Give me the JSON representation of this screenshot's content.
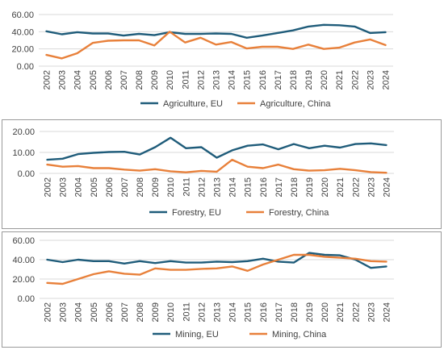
{
  "colors": {
    "eu": "#1F5C7A",
    "china": "#E8803A",
    "grid": "#d9d9d9",
    "text": "#404040"
  },
  "chart_data": [
    {
      "type": "line",
      "title": "",
      "xlabel": "",
      "ylabel": "",
      "ylim": [
        0,
        60
      ],
      "yticks": [
        "0.00",
        "20.00",
        "40.00",
        "60.00"
      ],
      "ytick_values": [
        0,
        20,
        40,
        60
      ],
      "grid": true,
      "legend_position": "bottom",
      "x": [
        "2002",
        "2003",
        "2004",
        "2005",
        "2006",
        "2007",
        "2008",
        "2009",
        "2010",
        "2011",
        "2012",
        "2013",
        "2014",
        "2015",
        "2016",
        "2017",
        "2018",
        "2019",
        "2020",
        "2021",
        "2022",
        "2023",
        "2024"
      ],
      "series": [
        {
          "name": "Agriculture, EU",
          "color": "#1F5C7A",
          "values": [
            40.5,
            37,
            39.5,
            38,
            38,
            35.5,
            37.5,
            36,
            39.5,
            37.5,
            37.5,
            38,
            37.5,
            33,
            35.5,
            38.5,
            41.5,
            46,
            48,
            47.5,
            46,
            38.5,
            39.5
          ]
        },
        {
          "name": "Agriculture, China",
          "color": "#E8803A",
          "values": [
            13,
            9,
            15,
            27,
            29.5,
            30,
            30,
            24,
            40,
            27.5,
            33,
            25,
            28,
            20.5,
            22.5,
            22.5,
            20,
            25,
            20,
            21.5,
            27.5,
            31,
            24.5
          ]
        }
      ]
    },
    {
      "type": "line",
      "title": "",
      "xlabel": "",
      "ylabel": "",
      "ylim": [
        0,
        20
      ],
      "yticks": [
        "0.00",
        "10.00",
        "20.00"
      ],
      "ytick_values": [
        0,
        10,
        20
      ],
      "grid": true,
      "legend_position": "bottom",
      "x": [
        "2002",
        "2003",
        "2004",
        "2005",
        "2006",
        "2007",
        "2008",
        "2009",
        "2010",
        "2011",
        "2012",
        "2013",
        "2014",
        "2015",
        "2016",
        "2017",
        "2018",
        "2019",
        "2020",
        "2021",
        "2022",
        "2023",
        "2024"
      ],
      "series": [
        {
          "name": "Forestry, EU",
          "color": "#1F5C7A",
          "values": [
            6.5,
            7,
            9.2,
            9.8,
            10.2,
            10.3,
            9,
            12.5,
            17,
            12,
            12.5,
            7.5,
            11,
            13.2,
            13.8,
            11.5,
            14,
            12,
            13.2,
            12.3,
            14,
            14.3,
            13.5
          ]
        },
        {
          "name": "Forestry, China",
          "color": "#E8803A",
          "values": [
            4.2,
            3.2,
            3.5,
            2.5,
            2.5,
            1.8,
            1.3,
            2,
            1,
            0.5,
            1.2,
            0.8,
            6.5,
            3.2,
            2.5,
            4.2,
            2,
            1.3,
            1.5,
            2.2,
            1.5,
            0.6,
            0.3
          ]
        }
      ]
    },
    {
      "type": "line",
      "title": "",
      "xlabel": "",
      "ylabel": "",
      "ylim": [
        0,
        60
      ],
      "yticks": [
        "0.00",
        "20.00",
        "40.00",
        "60.00"
      ],
      "ytick_values": [
        0,
        20,
        40,
        60
      ],
      "grid": true,
      "legend_position": "bottom",
      "x": [
        "2002",
        "2003",
        "2004",
        "2005",
        "2006",
        "2007",
        "2008",
        "2009",
        "2010",
        "2011",
        "2012",
        "2013",
        "2014",
        "2015",
        "2016",
        "2017",
        "2018",
        "2019",
        "2020",
        "2021",
        "2022",
        "2023",
        "2024"
      ],
      "series": [
        {
          "name": "Mining, EU",
          "color": "#1F5C7A",
          "values": [
            40,
            37.5,
            40,
            38.5,
            38.5,
            36,
            38.5,
            36.5,
            38.5,
            37,
            37,
            38,
            37.5,
            38.5,
            41,
            38,
            37,
            47,
            45,
            44.5,
            40,
            31.5,
            33
          ]
        },
        {
          "name": "Mining, China",
          "color": "#E8803A",
          "values": [
            16,
            15,
            20,
            25,
            28,
            25.5,
            24.5,
            31,
            29.5,
            29.5,
            30.5,
            31,
            33,
            28.5,
            35,
            40,
            45,
            45,
            43,
            42,
            41,
            38.5,
            38
          ]
        }
      ]
    }
  ]
}
